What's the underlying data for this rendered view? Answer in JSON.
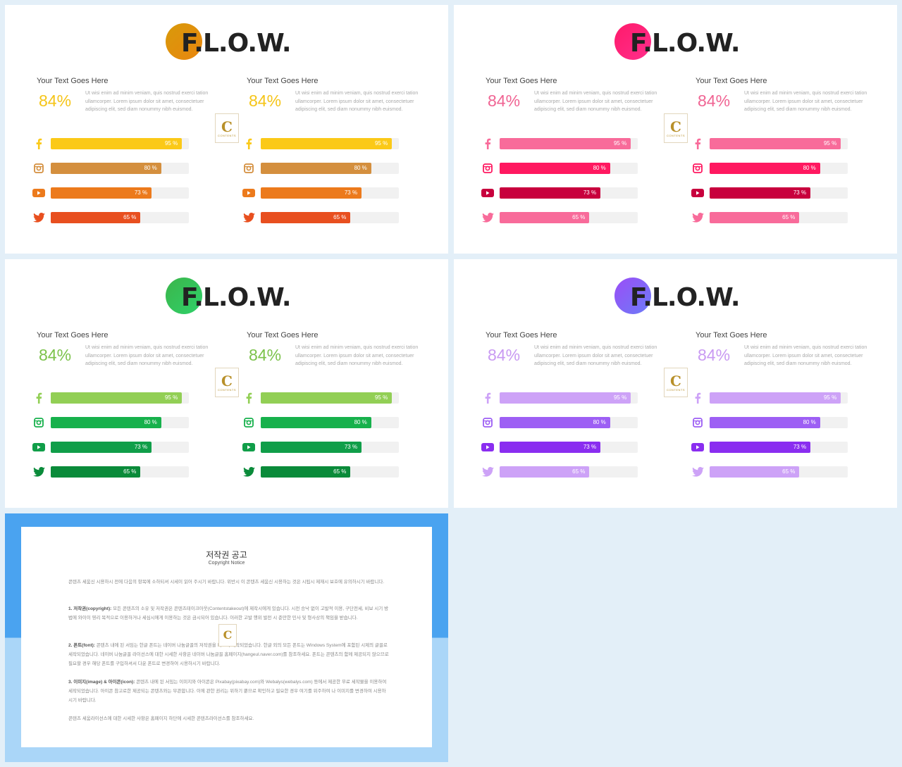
{
  "flow_title": "F.L.O.W.",
  "column_heading": "Your Text Goes Here",
  "column_percent": "84%",
  "column_desc": "Ut wisi enim ad minim veniam, quis nostrud exerci tation ullamcorper. Lorem ipsum dolor sit amet, consectetuer adipiscing elit, sed diam nonummy nibh euismod.",
  "badge": {
    "letter": "C",
    "text": "CONTENTS"
  },
  "bars": [
    {
      "network": "facebook-icon",
      "value": 95,
      "label": "95 %"
    },
    {
      "network": "instagram-icon",
      "value": 80,
      "label": "80 %"
    },
    {
      "network": "youtube-icon",
      "value": 73,
      "label": "73 %"
    },
    {
      "network": "twitter-icon",
      "value": 65,
      "label": "65 %"
    }
  ],
  "themes": [
    {
      "name": "orange",
      "circle": [
        "#d89a0a",
        "#e9860f"
      ],
      "percent_color": "#f5c518",
      "bar_colors": [
        "#fbc918",
        "#d48f3e",
        "#ec7a1c",
        "#e84f1f"
      ]
    },
    {
      "name": "pink",
      "circle": [
        "#ff1a6a",
        "#ff2f8c"
      ],
      "percent_color": "#f06493",
      "bar_colors": [
        "#f86b9a",
        "#ff1860",
        "#c8003d",
        "#f86b9a"
      ]
    },
    {
      "name": "green",
      "circle": [
        "#3bb54a",
        "#2fd16a"
      ],
      "percent_color": "#7bc24a",
      "bar_colors": [
        "#92cf55",
        "#17b14c",
        "#109e49",
        "#0a8b3a"
      ]
    },
    {
      "name": "purple",
      "circle": [
        "#9b4df7",
        "#6c7cf7"
      ],
      "percent_color": "#c99af2",
      "bar_colors": [
        "#cda2f7",
        "#9d5ff4",
        "#8a2df0",
        "#cda2f7"
      ]
    }
  ],
  "notice": {
    "title": "저작권 공고",
    "subtitle": "Copyright Notice",
    "intro": "콘텐츠 세움신 시용하시 전에 다음의 항목에 소하되셔 시세이 읽어 주시기 바랍니다. 위반시 이 콘텐츠 세움신 시용하는 것은 시됩시 제재시 보호에 유의하시기 바랍니다.",
    "p1_label": "1. 저작권(copyright):",
    "p1_text": "모든 콘텐츠의 소유 및 저작권은 콘텐츠테이크아웃(Contentstakeout)에 제작시에게 있습니다. 시전 승낙 없이 고발적 이용, 구단전세, 비보 시기 방법에 와이이 영리 목적으로 이용하거나 세심시에게 이용하는 것은 금시되어 있습니다. 이러한 고발 행위 발전 시 준만한 민사 및 형사상의 책임을 받습니다.",
    "p2_label": "2. 폰트(font):",
    "p2_text": "콘텐츠 내에 된 서임는 한글 폰트는 네이버 나눔글꼴의 저작권을 따르며 세작되었습니다. 한글 외의 모든 폰트는 Windows System에 포함된 시제의 글꼴로 세작되었습니다. 네이버 나눔글꼴 라이선스에 대한 시세한 사항은 네이버 나눔글꼴 홈페이지(hangeul.naver.com)를 참조하세요. 폰트는 콘텐츠의 함께 제공되지 않으므로 필요할 경우 해당 폰트를 구입하셔서 다운 폰트로 변경하여 시용하시기 바랍니다.",
    "p3_label": "3. 이미지(image) & 아이콘(icon):",
    "p3_text": "콘텐츠 내에 된 서임는 이미지와 아이콘은 Pixabay(pixabay.com)와 Webalys(webalys.com) 등에서 제공한 무료 세작물을 이용하여 세작되었습니다. 아이콘 참고로한 제공되는 콘텐츠와는 무관합니다. 이에 관한 권리는 위하기 뿐므로 확인하고 필요한 경우 여기를 위주하여 나 이미지를 변경하여 시용하시기 바랍니다.",
    "closing": "콘텐츠 세움라이선스에 대한 시세한 사항은 홈페이지 하단에 시세한 콘텐츠라이선스를 참조하세요."
  }
}
